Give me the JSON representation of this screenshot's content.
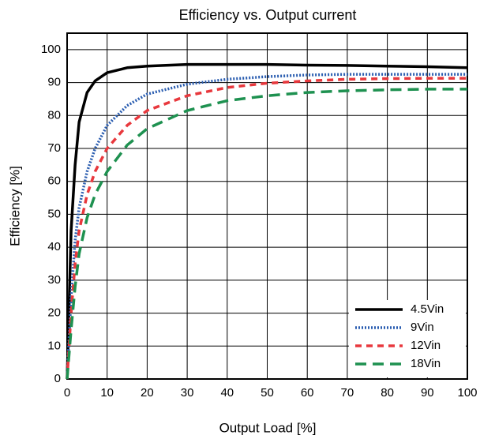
{
  "chart_data": {
    "type": "line",
    "title": "Efficiency vs. Output current",
    "x_label": "Output Load [%]",
    "y_label": "Efficiency [%]",
    "x": [
      0,
      1,
      2,
      3,
      5,
      7,
      10,
      15,
      20,
      30,
      40,
      50,
      60,
      70,
      80,
      90,
      100
    ],
    "series": [
      {
        "name": "4.5Vin",
        "color": "#000000",
        "line_style": "solid",
        "values": [
          0,
          45,
          65,
          78,
          87,
          90.5,
          93,
          94.5,
          95,
          95.5,
          95.5,
          95.5,
          95.3,
          95.2,
          95,
          94.8,
          94.5
        ]
      },
      {
        "name": "9Vin",
        "color": "#2a5db0",
        "line_style": "dotted",
        "values": [
          0,
          25,
          42,
          52,
          63,
          70,
          77,
          83,
          86.5,
          89.5,
          91,
          91.8,
          92.3,
          92.5,
          92.5,
          92.5,
          92.5
        ]
      },
      {
        "name": "12Vin",
        "color": "#e8383d",
        "line_style": "dashed",
        "values": [
          0,
          20,
          35,
          45,
          56,
          63,
          70,
          77,
          81.5,
          86,
          88.5,
          89.8,
          90.5,
          91,
          91.2,
          91.3,
          91.3
        ]
      },
      {
        "name": "18Vin",
        "color": "#1e9150",
        "line_style": "long-dashed",
        "values": [
          0,
          15,
          28,
          38,
          49,
          56,
          63,
          71,
          76,
          81.5,
          84.5,
          86,
          87,
          87.5,
          87.8,
          88,
          88
        ]
      }
    ],
    "xlim": [
      0,
      100
    ],
    "xticks": [
      0,
      10,
      20,
      30,
      40,
      50,
      60,
      70,
      80,
      90,
      100
    ],
    "ylim": [
      0,
      105
    ],
    "yticks": [
      0,
      10,
      20,
      30,
      40,
      50,
      60,
      70,
      80,
      90,
      100
    ],
    "grid": true,
    "legend": "lower-right"
  }
}
